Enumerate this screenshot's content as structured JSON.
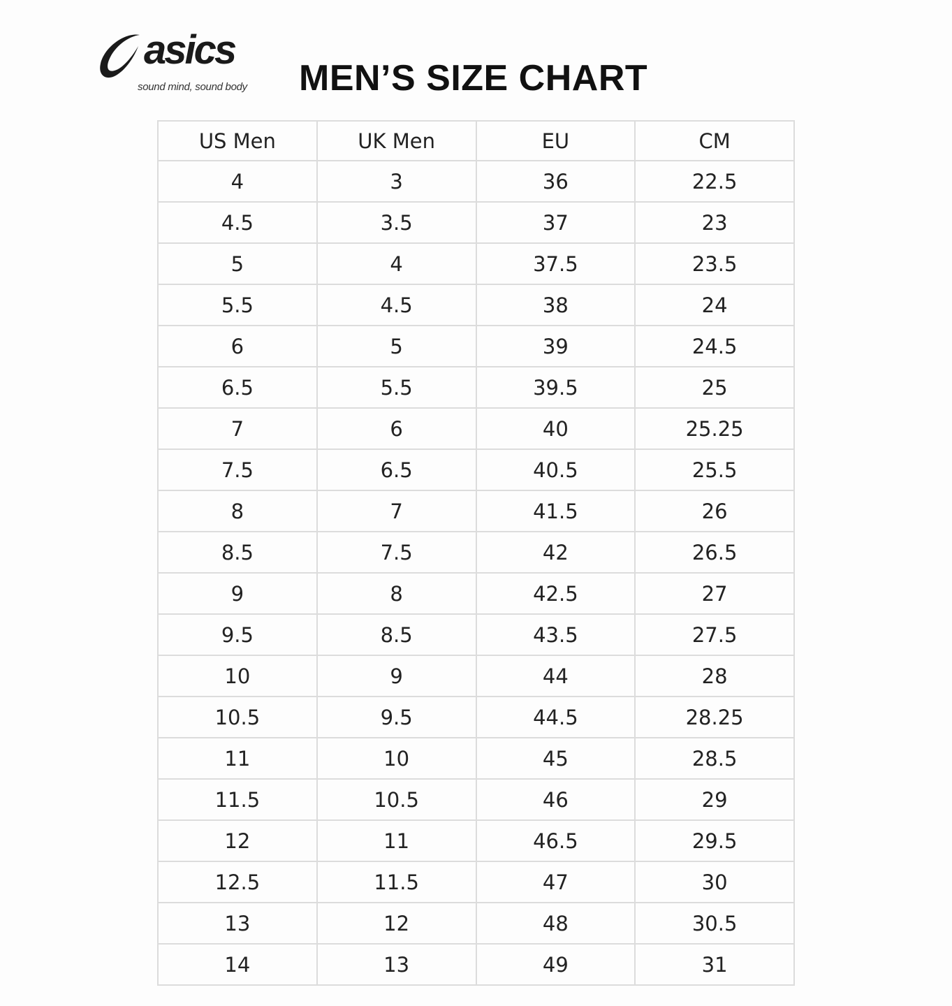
{
  "brand": {
    "name": "asics",
    "tagline": "sound mind, sound body"
  },
  "title": "MEN’S SIZE CHART",
  "table": {
    "headers": [
      "US Men",
      "UK Men",
      "EU",
      "CM"
    ],
    "rows": [
      [
        "4",
        "3",
        "36",
        "22.5"
      ],
      [
        "4.5",
        "3.5",
        "37",
        "23"
      ],
      [
        "5",
        "4",
        "37.5",
        "23.5"
      ],
      [
        "5.5",
        "4.5",
        "38",
        "24"
      ],
      [
        "6",
        "5",
        "39",
        "24.5"
      ],
      [
        "6.5",
        "5.5",
        "39.5",
        "25"
      ],
      [
        "7",
        "6",
        "40",
        "25.25"
      ],
      [
        "7.5",
        "6.5",
        "40.5",
        "25.5"
      ],
      [
        "8",
        "7",
        "41.5",
        "26"
      ],
      [
        "8.5",
        "7.5",
        "42",
        "26.5"
      ],
      [
        "9",
        "8",
        "42.5",
        "27"
      ],
      [
        "9.5",
        "8.5",
        "43.5",
        "27.5"
      ],
      [
        "10",
        "9",
        "44",
        "28"
      ],
      [
        "10.5",
        "9.5",
        "44.5",
        "28.25"
      ],
      [
        "11",
        "10",
        "45",
        "28.5"
      ],
      [
        "11.5",
        "10.5",
        "46",
        "29"
      ],
      [
        "12",
        "11",
        "46.5",
        "29.5"
      ],
      [
        "12.5",
        "11.5",
        "47",
        "30"
      ],
      [
        "13",
        "12",
        "48",
        "30.5"
      ],
      [
        "14",
        "13",
        "49",
        "31"
      ]
    ]
  }
}
